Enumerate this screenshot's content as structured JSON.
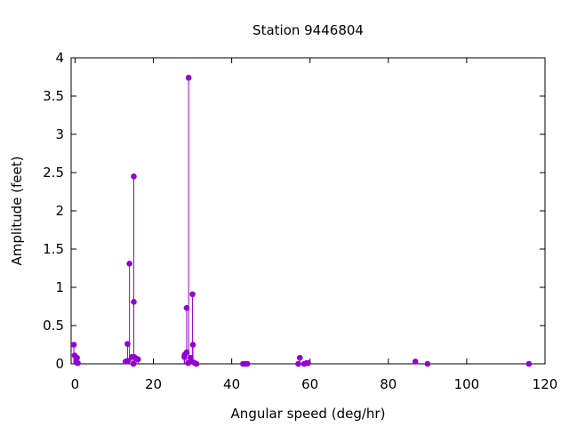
{
  "chart_data": {
    "type": "stem",
    "title": "Station 9446804",
    "xlabel": "Angular speed (deg/hr)",
    "ylabel": "Amplitude (feet)",
    "xlim": [
      -1,
      120
    ],
    "ylim": [
      0,
      4
    ],
    "x_ticks": [
      0,
      20,
      40,
      60,
      80,
      100,
      120
    ],
    "y_ticks": [
      0,
      0.5,
      1,
      1.5,
      2,
      2.5,
      3,
      3.5,
      4
    ],
    "grid": false,
    "legend": "none",
    "color": "#9400d3",
    "points": [
      {
        "x": -0.3,
        "y": 0.25
      },
      {
        "x": -0.1,
        "y": 0.11
      },
      {
        "x": 0.3,
        "y": 0.02
      },
      {
        "x": 0.5,
        "y": 0.08
      },
      {
        "x": 0.7,
        "y": 0.01
      },
      {
        "x": 12.9,
        "y": 0.03
      },
      {
        "x": 13.4,
        "y": 0.26
      },
      {
        "x": 13.5,
        "y": 0.04
      },
      {
        "x": 13.9,
        "y": 1.31
      },
      {
        "x": 14.5,
        "y": 0.09
      },
      {
        "x": 14.9,
        "y": 0.0
      },
      {
        "x": 15.0,
        "y": 2.45
      },
      {
        "x": 15.0,
        "y": 0.81
      },
      {
        "x": 15.1,
        "y": 0.09
      },
      {
        "x": 15.6,
        "y": 0.07
      },
      {
        "x": 16.1,
        "y": 0.06
      },
      {
        "x": 27.9,
        "y": 0.09
      },
      {
        "x": 28.0,
        "y": 0.12
      },
      {
        "x": 28.5,
        "y": 0.73
      },
      {
        "x": 28.5,
        "y": 0.15
      },
      {
        "x": 28.9,
        "y": 0.01
      },
      {
        "x": 29.0,
        "y": 3.74
      },
      {
        "x": 29.5,
        "y": 0.08
      },
      {
        "x": 29.9,
        "y": 0.03
      },
      {
        "x": 30.0,
        "y": 0.91
      },
      {
        "x": 30.1,
        "y": 0.25
      },
      {
        "x": 30.6,
        "y": 0.01
      },
      {
        "x": 31.0,
        "y": 0.0
      },
      {
        "x": 42.9,
        "y": 0.0
      },
      {
        "x": 43.5,
        "y": 0.0
      },
      {
        "x": 44.0,
        "y": 0.0
      },
      {
        "x": 57.0,
        "y": 0.0
      },
      {
        "x": 57.4,
        "y": 0.08
      },
      {
        "x": 58.5,
        "y": 0.0
      },
      {
        "x": 59.1,
        "y": 0.01
      },
      {
        "x": 59.5,
        "y": 0.01
      },
      {
        "x": 86.9,
        "y": 0.03
      },
      {
        "x": 90.0,
        "y": 0.0
      },
      {
        "x": 115.9,
        "y": 0.0
      }
    ]
  }
}
